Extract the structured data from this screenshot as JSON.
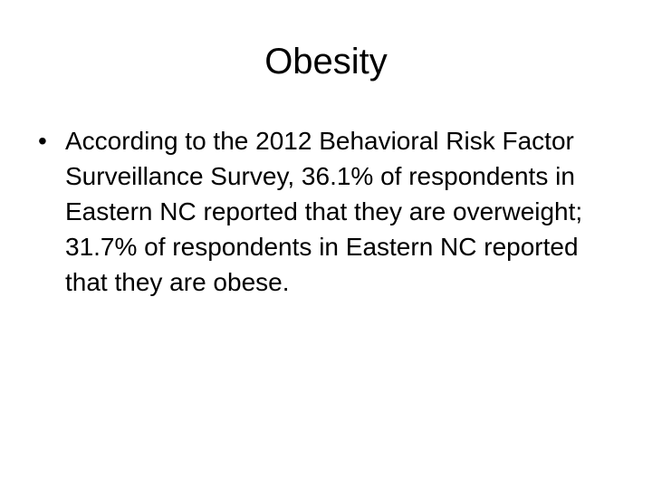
{
  "title": "Obesity",
  "bullets": [
    "According to the 2012 Behavioral Risk Factor Surveillance Survey, 36.1% of respondents in Eastern NC reported that they are overweight; 31.7% of respondents in Eastern NC reported that they are obese."
  ]
}
